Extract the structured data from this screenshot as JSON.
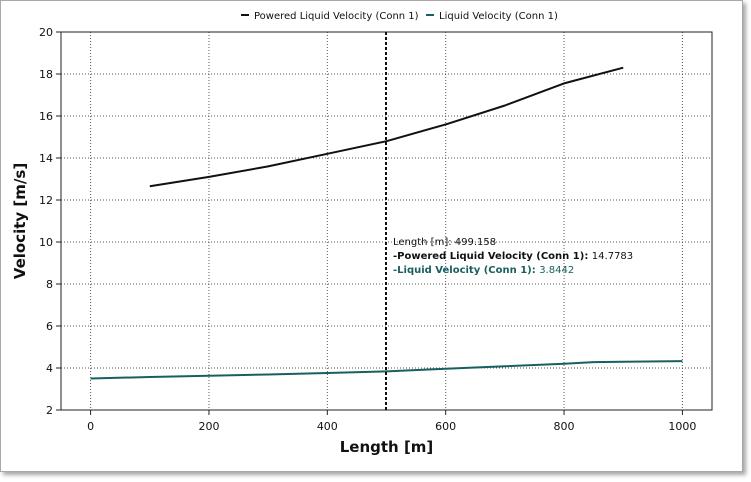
{
  "chart_data": {
    "type": "line",
    "xlabel": "Length [m]",
    "ylabel": "Velocity [m/s]",
    "xlim": [
      -50,
      1050
    ],
    "ylim": [
      2,
      20
    ],
    "xticks": [
      0,
      200,
      400,
      600,
      800,
      1000
    ],
    "yticks": [
      2,
      4,
      6,
      8,
      10,
      12,
      14,
      16,
      18,
      20
    ],
    "grid": true,
    "legend_position": "top-center",
    "series": [
      {
        "name": "Powered Liquid Velocity (Conn 1)",
        "color": "#111111",
        "x": [
          100,
          200,
          300,
          400,
          500,
          600,
          700,
          800,
          900
        ],
        "y": [
          12.65,
          13.1,
          13.6,
          14.2,
          14.8,
          15.6,
          16.5,
          17.55,
          18.3
        ]
      },
      {
        "name": "Liquid Velocity (Conn 1)",
        "color": "#1a5f5f",
        "x": [
          0,
          100,
          200,
          300,
          400,
          500,
          600,
          700,
          800,
          850,
          900,
          1000
        ],
        "y": [
          3.5,
          3.57,
          3.63,
          3.69,
          3.76,
          3.84,
          3.96,
          4.08,
          4.2,
          4.28,
          4.3,
          4.33
        ]
      }
    ],
    "cursor": {
      "x": 499.158,
      "label": "Length [m]",
      "value_text": "499.158",
      "entries": [
        {
          "name": "-Powered Liquid Velocity (Conn 1)",
          "value": "14.7783",
          "color": "#111111"
        },
        {
          "name": "-Liquid Velocity (Conn 1)",
          "value": "3.8442",
          "color": "#1a5f5f"
        }
      ]
    }
  }
}
